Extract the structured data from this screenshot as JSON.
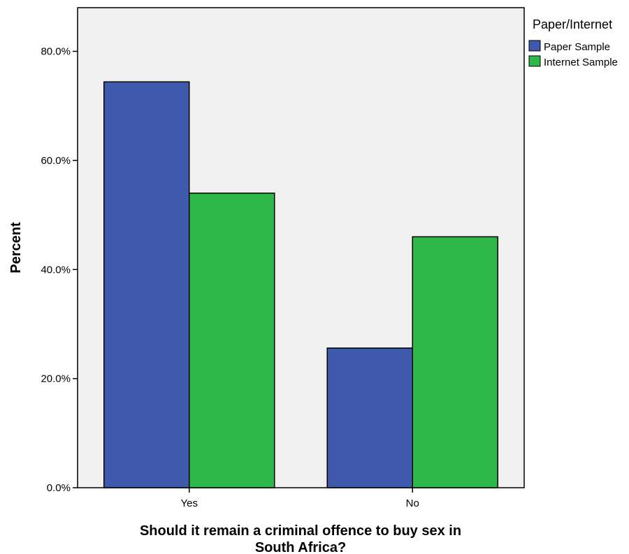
{
  "chart_data": {
    "type": "bar",
    "categories": [
      "Yes",
      "No"
    ],
    "series": [
      {
        "name": "Paper Sample",
        "values": [
          74.4,
          25.6
        ],
        "color": "#3f5aad"
      },
      {
        "name": "Internet Sample",
        "values": [
          54.0,
          46.0
        ],
        "color": "#2fb84a"
      }
    ],
    "ylim": [
      0,
      88
    ],
    "yticks": [
      0,
      20,
      40,
      60,
      80
    ],
    "ytick_labels": [
      "0.0%",
      "20.0%",
      "40.0%",
      "60.0%",
      "80.0%"
    ],
    "ylabel": "Percent",
    "xlabel_lines": [
      "Should it remain a criminal offence to buy sex in",
      "South Africa?"
    ],
    "legend_title": "Paper/Internet",
    "legend_placement": "right",
    "plot_background": "#f0f0f0",
    "grid": false
  }
}
